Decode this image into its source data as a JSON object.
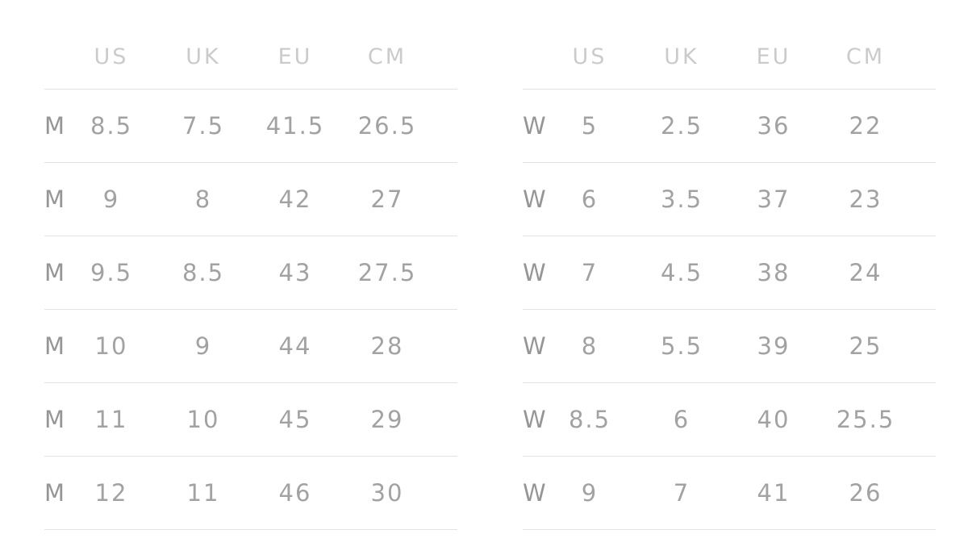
{
  "size_chart": {
    "columns": [
      "US",
      "UK",
      "EU",
      "CM"
    ],
    "tables": [
      {
        "name": "men",
        "gender_label": "M",
        "rows": [
          [
            "8.5",
            "7.5",
            "41.5",
            "26.5"
          ],
          [
            "9",
            "8",
            "42",
            "27"
          ],
          [
            "9.5",
            "8.5",
            "43",
            "27.5"
          ],
          [
            "10",
            "9",
            "44",
            "28"
          ],
          [
            "11",
            "10",
            "45",
            "29"
          ],
          [
            "12",
            "11",
            "46",
            "30"
          ]
        ]
      },
      {
        "name": "women",
        "gender_label": "W",
        "rows": [
          [
            "5",
            "2.5",
            "36",
            "22"
          ],
          [
            "6",
            "3.5",
            "37",
            "23"
          ],
          [
            "7",
            "4.5",
            "38",
            "24"
          ],
          [
            "8",
            "5.5",
            "39",
            "25"
          ],
          [
            "8.5",
            "6",
            "40",
            "25.5"
          ],
          [
            "9",
            "7",
            "41",
            "26"
          ]
        ]
      }
    ]
  },
  "colors": {
    "background": "#ffffff",
    "header_text": "#cbcbcb",
    "body_text": "#a2a2a2",
    "label_text": "#969696",
    "divider": "#e3e3e3"
  }
}
